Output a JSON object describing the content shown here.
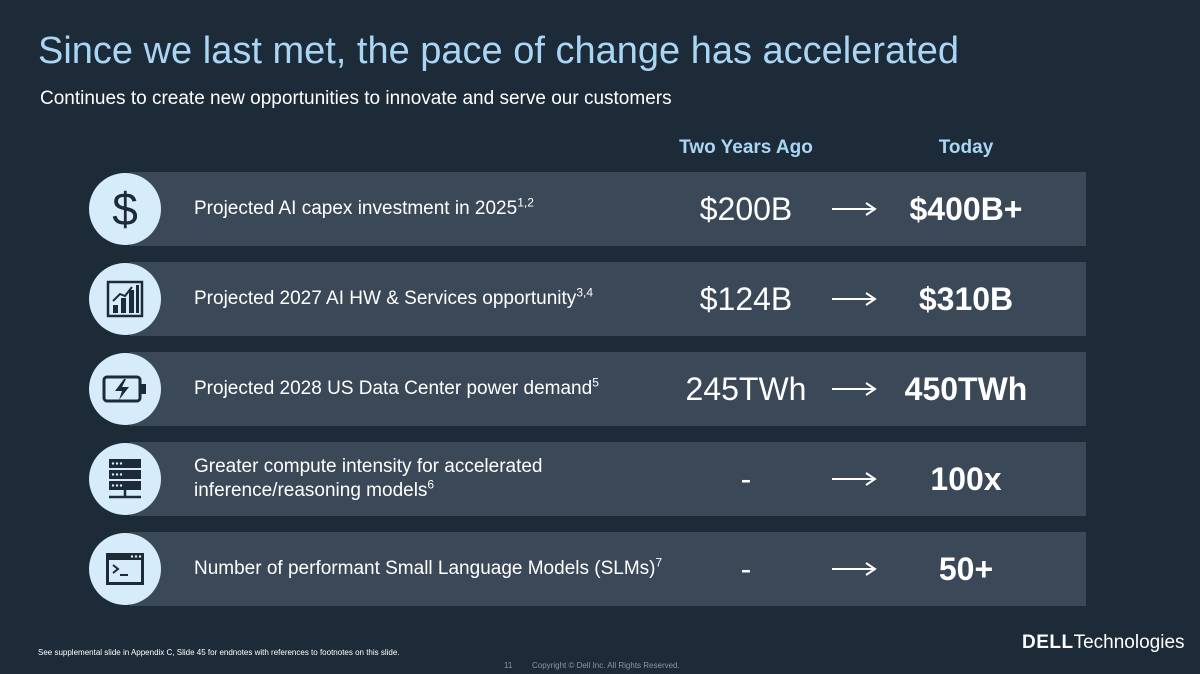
{
  "title": "Since we last met, the pace of change has accelerated",
  "subtitle": "Continues to create new opportunities to innovate and serve our customers",
  "columns": {
    "before": "Two Years Ago",
    "after": "Today"
  },
  "rows": [
    {
      "icon": "dollar-icon",
      "label": "Projected AI capex investment in 2025",
      "sup": "1,2",
      "before": "$200B",
      "after": "$400B+"
    },
    {
      "icon": "bar-chart-icon",
      "label": "Projected 2027 AI HW & Services opportunity",
      "sup": "3,4",
      "before": "$124B",
      "after": "$310B"
    },
    {
      "icon": "battery-icon",
      "label": "Projected 2028 US Data Center power demand",
      "sup": "5",
      "before": "245TWh",
      "after": "450TWh"
    },
    {
      "icon": "server-icon",
      "label": "Greater compute intensity for accelerated inference/reasoning models",
      "sup": "6",
      "before": "-",
      "after": "100x"
    },
    {
      "icon": "terminal-icon",
      "label": "Number of performant Small Language Models (SLMs)",
      "sup": "7",
      "before": "-",
      "after": "50+"
    }
  ],
  "footnote": "See supplemental slide in Appendix C, Slide 45 for endnotes with references to footnotes on this slide.",
  "page_number": "11",
  "copyright": "Copyright © Dell Inc. All Rights Reserved.",
  "logo": {
    "brand": "DELL",
    "suffix": "Technologies"
  },
  "colors": {
    "background": "#1d2a38",
    "row": "#3a4858",
    "accent": "#a9d6f5",
    "icon_circle": "#d6ecfb"
  }
}
